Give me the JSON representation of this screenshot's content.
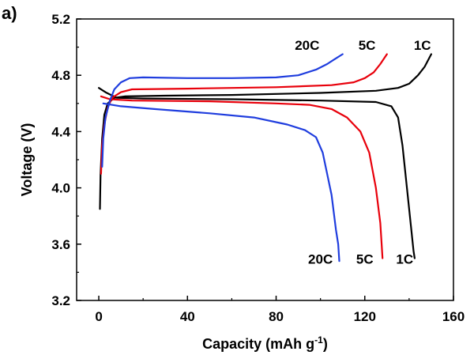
{
  "chart_data": {
    "type": "line",
    "panel_label": "a)",
    "xlabel": "Capacity (mAh g",
    "xlabel_superscript": "-1",
    "xlabel_suffix": ")",
    "ylabel": "Voltage (V)",
    "xlim": [
      -10,
      160
    ],
    "ylim": [
      3.2,
      5.2
    ],
    "x_ticks": [
      0,
      40,
      80,
      120,
      160
    ],
    "y_ticks": [
      3.2,
      3.6,
      4.0,
      4.4,
      4.8,
      5.2
    ],
    "x_tick_labels": [
      "0",
      "40",
      "80",
      "120",
      "160"
    ],
    "y_tick_labels": [
      "3.2",
      "3.6",
      "4.0",
      "4.4",
      "4.8",
      "5.2"
    ],
    "grid": false,
    "series": [
      {
        "id": "1c-charge",
        "color": "#000000",
        "points": [
          [
            0.5,
            3.85
          ],
          [
            0.8,
            4.1
          ],
          [
            1.5,
            4.35
          ],
          [
            2.5,
            4.52
          ],
          [
            4,
            4.6
          ],
          [
            7,
            4.64
          ],
          [
            12,
            4.65
          ],
          [
            30,
            4.655
          ],
          [
            60,
            4.66
          ],
          [
            100,
            4.675
          ],
          [
            125,
            4.69
          ],
          [
            135,
            4.71
          ],
          [
            140,
            4.74
          ],
          [
            144,
            4.8
          ],
          [
            147,
            4.86
          ],
          [
            150,
            4.95
          ]
        ]
      },
      {
        "id": "1c-discharge",
        "color": "#000000",
        "points": [
          [
            0,
            4.71
          ],
          [
            3,
            4.68
          ],
          [
            8,
            4.64
          ],
          [
            20,
            4.635
          ],
          [
            60,
            4.63
          ],
          [
            100,
            4.62
          ],
          [
            125,
            4.61
          ],
          [
            132,
            4.58
          ],
          [
            135,
            4.5
          ],
          [
            137,
            4.3
          ],
          [
            139,
            4.0
          ],
          [
            141,
            3.7
          ],
          [
            142,
            3.55
          ],
          [
            142.5,
            3.5
          ]
        ]
      },
      {
        "id": "5c-charge",
        "color": "#e8000b",
        "points": [
          [
            1,
            4.1
          ],
          [
            1.5,
            4.3
          ],
          [
            2.5,
            4.45
          ],
          [
            4,
            4.57
          ],
          [
            6,
            4.64
          ],
          [
            10,
            4.68
          ],
          [
            15,
            4.7
          ],
          [
            40,
            4.705
          ],
          [
            80,
            4.715
          ],
          [
            105,
            4.73
          ],
          [
            115,
            4.75
          ],
          [
            120,
            4.78
          ],
          [
            124,
            4.82
          ],
          [
            127,
            4.88
          ],
          [
            130,
            4.95
          ]
        ]
      },
      {
        "id": "5c-discharge",
        "color": "#e8000b",
        "points": [
          [
            1,
            4.65
          ],
          [
            5,
            4.63
          ],
          [
            15,
            4.62
          ],
          [
            50,
            4.615
          ],
          [
            80,
            4.6
          ],
          [
            95,
            4.59
          ],
          [
            105,
            4.56
          ],
          [
            112,
            4.5
          ],
          [
            118,
            4.4
          ],
          [
            122,
            4.25
          ],
          [
            125,
            4.0
          ],
          [
            127,
            3.75
          ],
          [
            128,
            3.5
          ]
        ]
      },
      {
        "id": "20c-charge",
        "color": "#1f3dde",
        "points": [
          [
            1.5,
            4.15
          ],
          [
            2,
            4.35
          ],
          [
            3,
            4.5
          ],
          [
            5,
            4.62
          ],
          [
            7,
            4.7
          ],
          [
            10,
            4.75
          ],
          [
            14,
            4.78
          ],
          [
            20,
            4.785
          ],
          [
            40,
            4.78
          ],
          [
            60,
            4.78
          ],
          [
            80,
            4.785
          ],
          [
            90,
            4.8
          ],
          [
            98,
            4.84
          ],
          [
            103,
            4.88
          ],
          [
            106,
            4.91
          ],
          [
            110,
            4.95
          ]
        ]
      },
      {
        "id": "20c-discharge",
        "color": "#1f3dde",
        "points": [
          [
            2,
            4.6
          ],
          [
            10,
            4.58
          ],
          [
            25,
            4.56
          ],
          [
            50,
            4.53
          ],
          [
            70,
            4.5
          ],
          [
            85,
            4.45
          ],
          [
            93,
            4.41
          ],
          [
            98,
            4.36
          ],
          [
            101,
            4.25
          ],
          [
            103,
            4.1
          ],
          [
            105,
            3.95
          ],
          [
            107,
            3.7
          ],
          [
            108,
            3.6
          ],
          [
            108.5,
            3.48
          ]
        ]
      }
    ],
    "annotations": [
      {
        "id": "label-20c-top",
        "text": "20C",
        "x": 94,
        "y": 4.98
      },
      {
        "id": "label-5c-top",
        "text": "5C",
        "x": 121,
        "y": 4.98
      },
      {
        "id": "label-1c-top",
        "text": "1C",
        "x": 146,
        "y": 4.98
      },
      {
        "id": "label-20c-bottom",
        "text": "20C",
        "x": 100,
        "y": 3.46
      },
      {
        "id": "label-5c-bottom",
        "text": "5C",
        "x": 120,
        "y": 3.46
      },
      {
        "id": "label-1c-bottom",
        "text": "1C",
        "x": 138,
        "y": 3.46
      }
    ]
  }
}
